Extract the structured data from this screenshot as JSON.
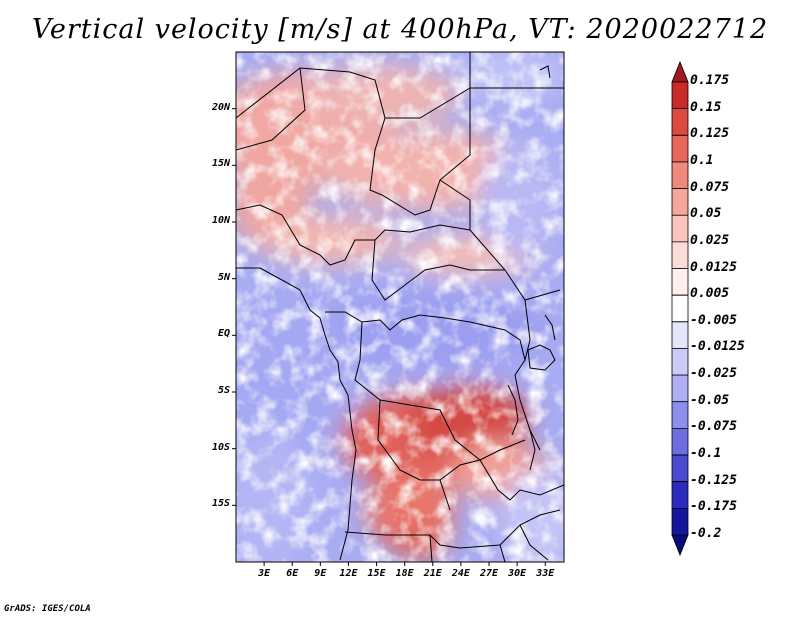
{
  "title": "Vertical velocity [m/s] at 400hPa, VT: 2020022712",
  "footer": "GrADS: IGES/COLA",
  "map": {
    "lat_labels": [
      "20N",
      "15N",
      "10N",
      "5N",
      "EQ",
      "5S",
      "10S",
      "15S"
    ],
    "lat_values": [
      20,
      15,
      10,
      5,
      0,
      -5,
      -10,
      -15
    ],
    "lon_labels": [
      "3E",
      "6E",
      "9E",
      "12E",
      "15E",
      "18E",
      "21E",
      "24E",
      "27E",
      "30E",
      "33E"
    ],
    "lon_values": [
      3,
      6,
      9,
      12,
      15,
      18,
      21,
      24,
      27,
      30,
      33
    ],
    "lon_range": [
      0,
      35
    ],
    "lat_range": [
      -20,
      25
    ]
  },
  "colorbar": {
    "labels": [
      "0.175",
      "0.15",
      "0.125",
      "0.1",
      "0.075",
      "0.05",
      "0.025",
      "0.0125",
      "0.005",
      "-0.005",
      "-0.0125",
      "-0.025",
      "-0.05",
      "-0.075",
      "-0.1",
      "-0.125",
      "-0.175",
      "-0.2"
    ],
    "colors": [
      "#a0191f",
      "#c82a2a",
      "#dc4a42",
      "#e8665a",
      "#f08a7c",
      "#f4a79c",
      "#f8c4bd",
      "#fcdcd8",
      "#fff0ee",
      "#ffffff",
      "#e6e6fb",
      "#cbcbf8",
      "#aeaef3",
      "#8e8eec",
      "#6d6de0",
      "#4a4ad0",
      "#2b2bbd",
      "#15159e",
      "#0b0b80"
    ]
  }
}
